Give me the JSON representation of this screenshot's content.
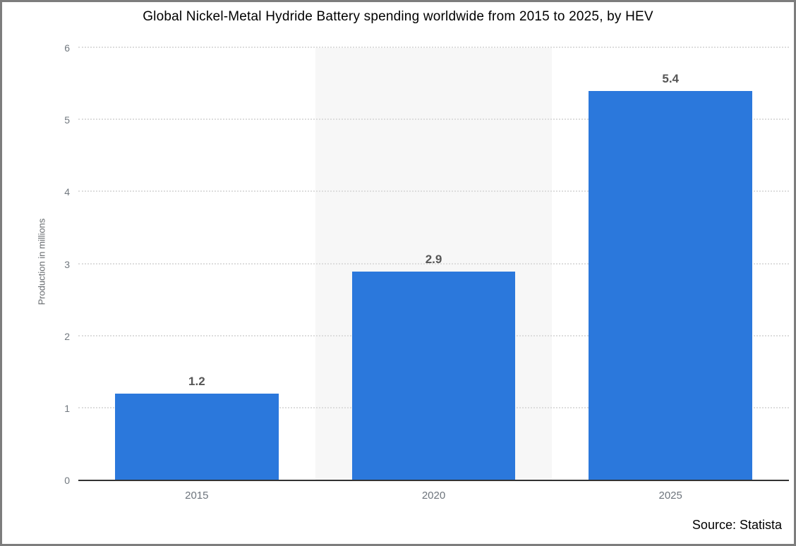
{
  "title": "Global Nickel-Metal Hydride Battery spending worldwide from 2015 to 2025, by HEV",
  "source": "Source: Statista",
  "chart_data": {
    "type": "bar",
    "title": "Global Nickel-Metal Hydride Battery spending worldwide from 2015 to 2025, by HEV",
    "categories": [
      "2015",
      "2020",
      "2025"
    ],
    "values": [
      1.2,
      2.9,
      5.4
    ],
    "value_labels": [
      "1.2",
      "2.9",
      "5.4"
    ],
    "xlabel": "",
    "ylabel": "Production in millions",
    "ylim": [
      0,
      6
    ],
    "yticks": [
      0,
      1,
      2,
      3,
      4,
      5,
      6
    ],
    "grid": "horizontal-dotted",
    "legend_position": "none",
    "highlighted_column_index": 1,
    "colors": {
      "bar": "#2b78dc",
      "highlight_band": "#f7f7f7",
      "value_label": "#565656",
      "tick_label": "#71787f",
      "axis_title": "#666a6e",
      "gridline": "#dddddd",
      "axis_line": "#333333",
      "frame_border": "#7d7d7d",
      "title_text": "#000000",
      "source_text": "#000000"
    }
  }
}
